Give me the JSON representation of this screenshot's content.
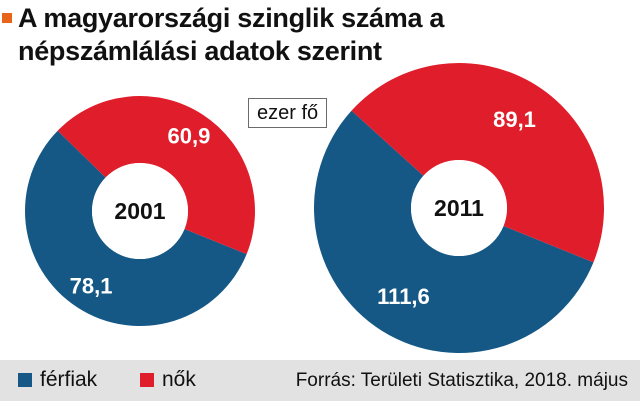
{
  "title": "A magyarországi szinglik száma a népszámlálási adatok szerint",
  "unit": "ezer fő",
  "legend": {
    "men": "férfiak",
    "women": "nők"
  },
  "source": "Forrás: Területi Statisztika, 2018. május",
  "colors": {
    "title_marker": "#e8641a",
    "men": "#155886",
    "women": "#e01d2a",
    "footer_bg": "#e2e2e2"
  },
  "chart_data": [
    {
      "type": "pie",
      "title": "2001",
      "categories": [
        "férfiak",
        "nők"
      ],
      "values": [
        78.1,
        60.9
      ],
      "value_labels": [
        "78,1",
        "60,9"
      ]
    },
    {
      "type": "pie",
      "title": "2011",
      "categories": [
        "férfiak",
        "nők"
      ],
      "values": [
        111.6,
        89.1
      ],
      "value_labels": [
        "111,6",
        "89,1"
      ]
    }
  ]
}
